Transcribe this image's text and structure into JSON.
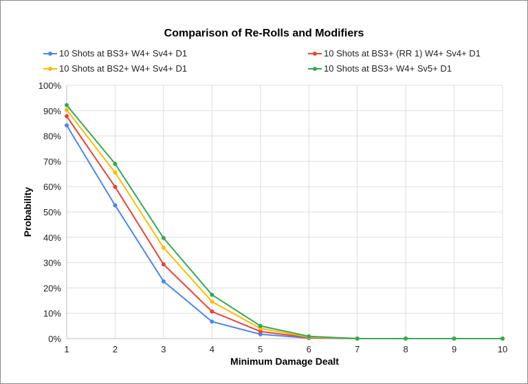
{
  "chart_data": {
    "type": "line",
    "title": "Comparison of Re-Rolls and Modifiers",
    "xlabel": "Minimum Damage Dealt",
    "ylabel": "Probability",
    "x": [
      1,
      2,
      3,
      4,
      5,
      6,
      7,
      8,
      9,
      10
    ],
    "xlim": [
      1,
      10
    ],
    "ylim": [
      0,
      100
    ],
    "y_ticks": [
      "0%",
      "10%",
      "20%",
      "30%",
      "40%",
      "50%",
      "60%",
      "70%",
      "80%",
      "90%",
      "100%"
    ],
    "x_ticks": [
      "1",
      "2",
      "3",
      "4",
      "5",
      "6",
      "7",
      "8",
      "9",
      "10"
    ],
    "grid": true,
    "legend_placement": "top",
    "series": [
      {
        "name": "10 Shots at BS3+ W4+ Sv4+ D1",
        "color": "#4a86e8",
        "values": [
          84.2,
          52.6,
          22.6,
          6.7,
          1.7,
          0.2,
          0,
          0,
          0,
          0
        ]
      },
      {
        "name": "10 Shots at BS3+ (RR 1) W4+ Sv4+ D1",
        "color": "#e84335",
        "values": [
          87.8,
          59.9,
          29.3,
          10.7,
          2.8,
          0.4,
          0,
          0,
          0,
          0
        ]
      },
      {
        "name": "10 Shots at BS2+ W4+ Sv4+ D1",
        "color": "#fbbc04",
        "values": [
          90.3,
          65.6,
          35.9,
          14.6,
          4.0,
          0.6,
          0,
          0,
          0,
          0
        ]
      },
      {
        "name": "10 Shots at BS3+ W4+ Sv5+ D1",
        "color": "#34a853",
        "values": [
          92.2,
          69.0,
          39.7,
          17.3,
          5.0,
          0.9,
          0,
          0,
          0,
          0
        ]
      }
    ]
  }
}
